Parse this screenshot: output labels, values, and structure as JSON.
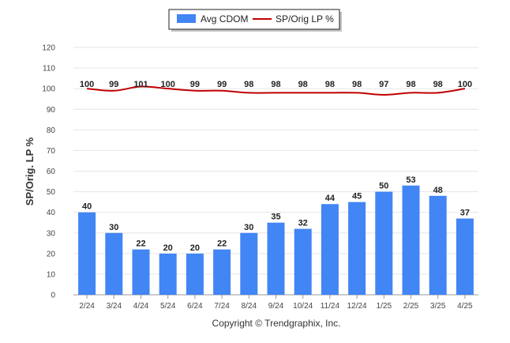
{
  "chart_data": {
    "type": "bar",
    "categories": [
      "2/24",
      "3/24",
      "4/24",
      "5/24",
      "6/24",
      "7/24",
      "8/24",
      "9/24",
      "10/24",
      "11/24",
      "12/24",
      "1/25",
      "2/25",
      "3/25",
      "4/25"
    ],
    "series": [
      {
        "name": "Avg CDOM",
        "type": "bar",
        "color": "#4285f4",
        "values": [
          40,
          30,
          22,
          20,
          20,
          22,
          30,
          35,
          32,
          44,
          45,
          50,
          53,
          48,
          37
        ]
      },
      {
        "name": "SP/Orig LP %",
        "type": "line",
        "color": "#c00000",
        "values": [
          100,
          99,
          101,
          100,
          99,
          99,
          98,
          98,
          98,
          98,
          98,
          97,
          98,
          98,
          100
        ]
      }
    ],
    "ylabel": "SP/Orig. LP %",
    "ylim": [
      0,
      120
    ],
    "yticks": [
      0,
      10,
      20,
      30,
      40,
      50,
      60,
      70,
      80,
      90,
      100,
      110,
      120
    ],
    "grid": true,
    "legend_position": "top-center"
  },
  "credit": "Copyright © Trendgraphix, Inc."
}
